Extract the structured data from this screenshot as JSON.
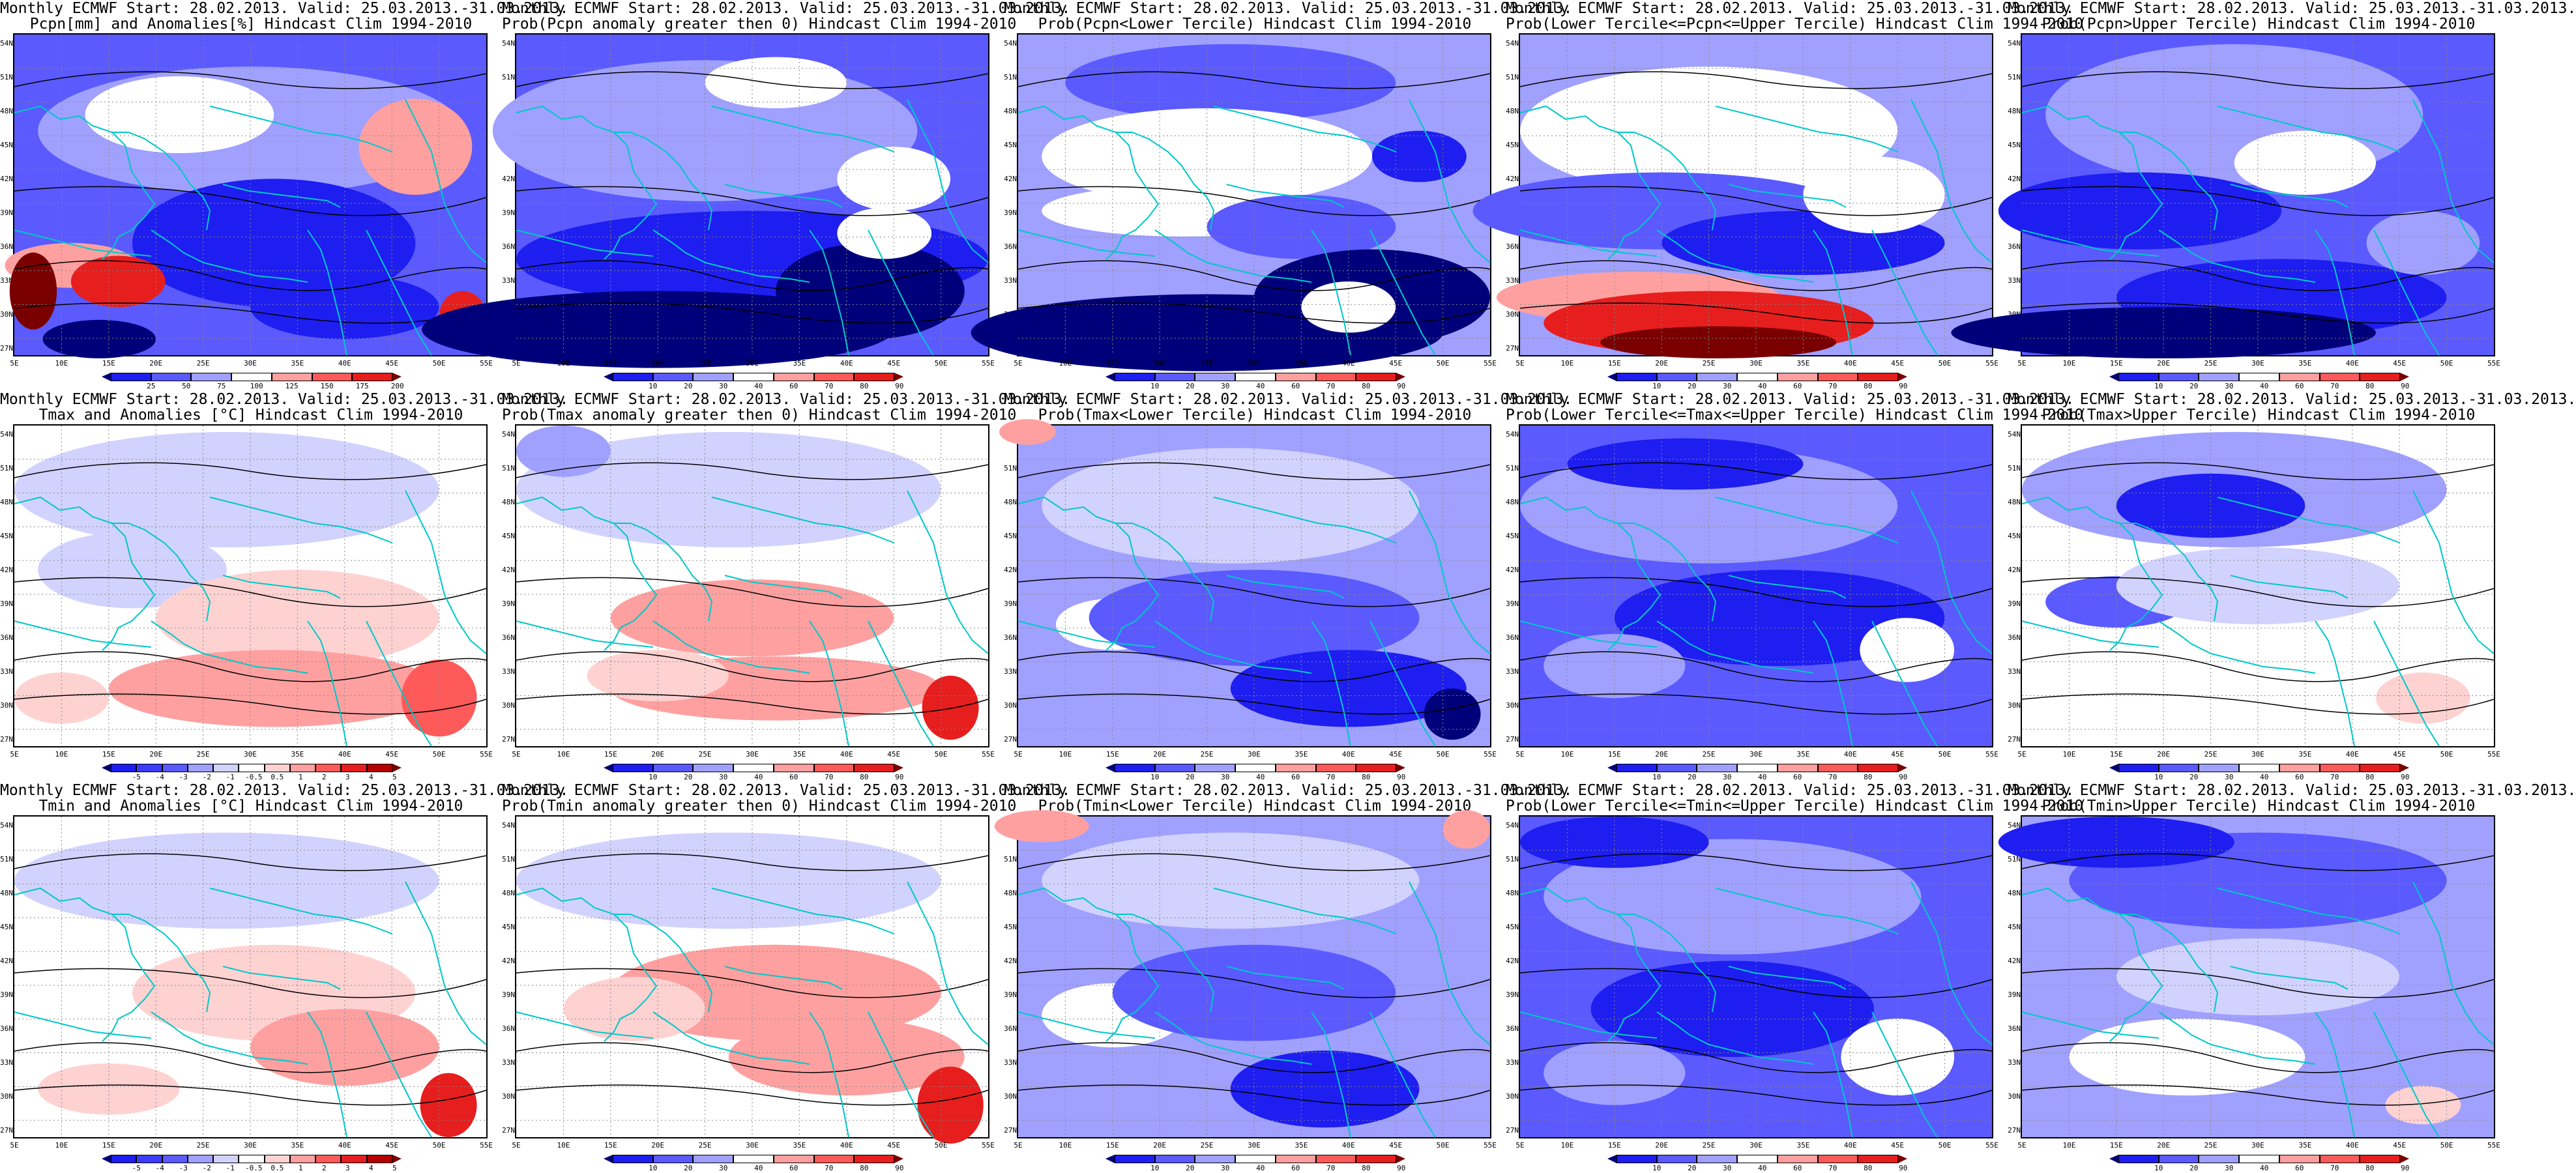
{
  "lat_labels": [
    "54N",
    "51N",
    "48N",
    "45N",
    "42N",
    "39N",
    "36N",
    "33N",
    "30N",
    "27N"
  ],
  "lon_labels": [
    "5E",
    "10E",
    "15E",
    "20E",
    "25E",
    "30E",
    "35E",
    "40E",
    "45E",
    "50E",
    "55E"
  ],
  "colors": {
    "coast": "#00c8c8",
    "contour": "#000000",
    "dark_blue": "#00007a",
    "blue": "#1e1ef0",
    "mid_blue": "#5a5aff",
    "light_blue": "#a0a0ff",
    "pale_blue": "#d2d2ff",
    "white": "#ffffff",
    "pale_red": "#ffd2d2",
    "light_red": "#ffa0a0",
    "mid_red": "#ff5a5a",
    "red": "#e61e1e",
    "dark_red": "#7a0000"
  },
  "colorbars": {
    "pcpn_anom": {
      "labels": [
        "25",
        "50",
        "75",
        "100",
        "125",
        "150",
        "175",
        "200"
      ],
      "colors": [
        "#00007a",
        "#1e1ef0",
        "#5a5aff",
        "#a0a0ff",
        "#ffffff",
        "#ffa0a0",
        "#ff5a5a",
        "#e61e1e",
        "#7a0000"
      ]
    },
    "temp_anom": {
      "labels": [
        "-5",
        "-4",
        "-3",
        "-2",
        "-1",
        "-0.5",
        "0.5",
        "1",
        "2",
        "3",
        "4",
        "5"
      ],
      "colors": [
        "#00007a",
        "#1e1ef0",
        "#3c3cff",
        "#5a5aff",
        "#a0a0ff",
        "#d2d2ff",
        "#ffffff",
        "#ffd2d2",
        "#ffa0a0",
        "#ff5a5a",
        "#e61e1e",
        "#b40000",
        "#7a0000"
      ]
    },
    "prob": {
      "labels": [
        "10",
        "20",
        "30",
        "40",
        "60",
        "70",
        "80",
        "90"
      ],
      "colors": [
        "#00007a",
        "#1e1ef0",
        "#5a5aff",
        "#a0a0ff",
        "#ffffff",
        "#ffa0a0",
        "#ff5a5a",
        "#e61e1e",
        "#7a0000"
      ]
    }
  },
  "panels": [
    {
      "title1": "Monthly ECMWF Start: 28.02.2013. Valid: 25.03.2013.-31.03.2013.",
      "title2": "Pcpn[mm] and Anomalies[%] Hindcast Clim 1994-2010",
      "cbar": "pcpn_anom",
      "base": "#5a5aff",
      "patches": [
        [
          "#a0a0ff",
          0.5,
          0.3,
          0.45,
          0.2
        ],
        [
          "#ffffff",
          0.35,
          0.25,
          0.2,
          0.12
        ],
        [
          "#ffa0a0",
          0.85,
          0.35,
          0.12,
          0.15
        ],
        [
          "#1e1ef0",
          0.55,
          0.65,
          0.3,
          0.2
        ],
        [
          "#ffa0a0",
          0.12,
          0.72,
          0.14,
          0.07
        ],
        [
          "#e61e1e",
          0.22,
          0.77,
          0.1,
          0.08
        ],
        [
          "#7a0000",
          0.04,
          0.8,
          0.05,
          0.12
        ],
        [
          "#00007a",
          0.18,
          0.95,
          0.12,
          0.06
        ],
        [
          "#1e1ef0",
          0.7,
          0.85,
          0.2,
          0.1
        ],
        [
          "#e61e1e",
          0.95,
          0.88,
          0.05,
          0.08
        ]
      ]
    },
    {
      "title1": "Monthly ECMWF Start: 28.02.2013. Valid: 25.03.2013.-31.03.2013.",
      "title2": "Prob(Pcpn anomaly greater then 0) Hindcast Clim 1994-2010",
      "cbar": "prob",
      "base": "#5a5aff",
      "patches": [
        [
          "#a0a0ff",
          0.4,
          0.3,
          0.45,
          0.22
        ],
        [
          "#ffffff",
          0.55,
          0.15,
          0.15,
          0.08
        ],
        [
          "#ffffff",
          0.8,
          0.45,
          0.12,
          0.1
        ],
        [
          "#1e1ef0",
          0.5,
          0.7,
          0.5,
          0.15
        ],
        [
          "#00007a",
          0.3,
          0.92,
          0.5,
          0.12
        ],
        [
          "#00007a",
          0.75,
          0.8,
          0.2,
          0.15
        ],
        [
          "#ffffff",
          0.78,
          0.62,
          0.1,
          0.08
        ]
      ]
    },
    {
      "title1": "Monthly ECMWF Start: 28.02.2013. Valid: 25.03.2013.-31.03.2013.",
      "title2": "Prob(Pcpn<Lower Tercile) Hindcast Clim 1994-2010",
      "cbar": "prob",
      "base": "#a0a0ff",
      "patches": [
        [
          "#5a5aff",
          0.45,
          0.15,
          0.35,
          0.12
        ],
        [
          "#ffffff",
          0.4,
          0.38,
          0.35,
          0.15
        ],
        [
          "#ffffff",
          0.35,
          0.55,
          0.3,
          0.08
        ],
        [
          "#5a5aff",
          0.6,
          0.6,
          0.2,
          0.1
        ],
        [
          "#00007a",
          0.4,
          0.93,
          0.5,
          0.12
        ],
        [
          "#00007a",
          0.75,
          0.82,
          0.25,
          0.15
        ],
        [
          "#ffffff",
          0.7,
          0.85,
          0.1,
          0.08
        ],
        [
          "#1e1ef0",
          0.85,
          0.38,
          0.1,
          0.08
        ]
      ]
    },
    {
      "title1": "Monthly ECMWF Start: 28.02.2013. Valid: 25.03.2013.-31.03.2013.",
      "title2": "Prob(Lower Tercile<=Pcpn<=Upper Tercile) Hindcast Clim 1994-2010",
      "cbar": "prob",
      "base": "#a0a0ff",
      "patches": [
        [
          "#ffffff",
          0.4,
          0.3,
          0.4,
          0.2
        ],
        [
          "#5a5aff",
          0.3,
          0.55,
          0.4,
          0.12
        ],
        [
          "#1e1ef0",
          0.6,
          0.65,
          0.3,
          0.1
        ],
        [
          "#ffa0a0",
          0.25,
          0.82,
          0.3,
          0.08
        ],
        [
          "#e61e1e",
          0.4,
          0.9,
          0.35,
          0.1
        ],
        [
          "#7a0000",
          0.42,
          0.96,
          0.25,
          0.05
        ],
        [
          "#ffffff",
          0.75,
          0.5,
          0.15,
          0.12
        ]
      ]
    },
    {
      "title1": "Monthly ECMWF Start: 28.02.2013. Valid: 25.03.2013.-31.03.2013.",
      "title2": "Prob(Pcpn>Upper Tercile) Hindcast Clim 1994-2010",
      "cbar": "prob",
      "base": "#5a5aff",
      "patches": [
        [
          "#a0a0ff",
          0.45,
          0.25,
          0.4,
          0.22
        ],
        [
          "#ffffff",
          0.6,
          0.4,
          0.15,
          0.1
        ],
        [
          "#1e1ef0",
          0.25,
          0.55,
          0.3,
          0.12
        ],
        [
          "#1e1ef0",
          0.55,
          0.82,
          0.35,
          0.12
        ],
        [
          "#00007a",
          0.3,
          0.93,
          0.45,
          0.08
        ],
        [
          "#a0a0ff",
          0.85,
          0.65,
          0.12,
          0.1
        ]
      ]
    },
    {
      "title1": "Monthly ECMWF Start: 28.02.2013. Valid: 25.03.2013.-31.03.2013.",
      "title2": "Tmax and Anomalies [°C] Hindcast Clim 1994-2010",
      "cbar": "temp_anom",
      "base": "#ffffff",
      "patches": [
        [
          "#d2d2ff",
          0.45,
          0.2,
          0.45,
          0.18
        ],
        [
          "#d2d2ff",
          0.25,
          0.45,
          0.2,
          0.12
        ],
        [
          "#ffd2d2",
          0.6,
          0.6,
          0.3,
          0.15
        ],
        [
          "#ffa0a0",
          0.55,
          0.82,
          0.35,
          0.12
        ],
        [
          "#ff5a5a",
          0.9,
          0.85,
          0.08,
          0.12
        ],
        [
          "#ffd2d2",
          0.1,
          0.85,
          0.1,
          0.08
        ]
      ]
    },
    {
      "title1": "Monthly ECMWF Start: 28.02.2013. Valid: 25.03.2013.-31.03.2013.",
      "title2": "Prob(Tmax anomaly greater then 0) Hindcast Clim 1994-2010",
      "cbar": "prob",
      "base": "#ffffff",
      "patches": [
        [
          "#d2d2ff",
          0.45,
          0.2,
          0.45,
          0.18
        ],
        [
          "#a0a0ff",
          0.1,
          0.08,
          0.1,
          0.08
        ],
        [
          "#ffa0a0",
          0.5,
          0.6,
          0.3,
          0.12
        ],
        [
          "#ffa0a0",
          0.55,
          0.82,
          0.35,
          0.1
        ],
        [
          "#e61e1e",
          0.92,
          0.88,
          0.06,
          0.1
        ],
        [
          "#ffd2d2",
          0.3,
          0.78,
          0.15,
          0.08
        ]
      ]
    },
    {
      "title1": "Monthly ECMWF Start: 28.02.2013. Valid: 25.03.2013.-31.03.2013.",
      "title2": "Prob(Tmax<Lower Tercile) Hindcast Clim 1994-2010",
      "cbar": "prob",
      "base": "#a0a0ff",
      "patches": [
        [
          "#d2d2ff",
          0.45,
          0.25,
          0.4,
          0.18
        ],
        [
          "#ffffff",
          0.2,
          0.62,
          0.12,
          0.08
        ],
        [
          "#5a5aff",
          0.5,
          0.6,
          0.35,
          0.15
        ],
        [
          "#1e1ef0",
          0.7,
          0.82,
          0.25,
          0.12
        ],
        [
          "#00007a",
          0.92,
          0.9,
          0.06,
          0.08
        ],
        [
          "#ffa0a0",
          0.02,
          0.02,
          0.06,
          0.04
        ]
      ]
    },
    {
      "title1": "Monthly ECMWF Start: 28.02.2013. Valid: 25.03.2013.-31.03.2013.",
      "title2": "Prob(Lower Tercile<=Tmax<=Upper Tercile) Hindcast Clim 1994-2010",
      "cbar": "prob",
      "base": "#5a5aff",
      "patches": [
        [
          "#a0a0ff",
          0.4,
          0.25,
          0.4,
          0.18
        ],
        [
          "#1e1ef0",
          0.55,
          0.6,
          0.35,
          0.15
        ],
        [
          "#1e1ef0",
          0.35,
          0.12,
          0.25,
          0.08
        ],
        [
          "#ffffff",
          0.82,
          0.7,
          0.1,
          0.1
        ],
        [
          "#a0a0ff",
          0.2,
          0.75,
          0.15,
          0.1
        ]
      ]
    },
    {
      "title1": "Monthly ECMWF Start: 28.02.2013. Valid: 25.03.2013.-31.03.2013.",
      "title2": "Prob(Tmax>Upper Tercile) Hindcast Clim 1994-2010",
      "cbar": "prob",
      "base": "#ffffff",
      "patches": [
        [
          "#a0a0ff",
          0.45,
          0.2,
          0.45,
          0.18
        ],
        [
          "#1e1ef0",
          0.4,
          0.25,
          0.2,
          0.1
        ],
        [
          "#5a5aff",
          0.2,
          0.55,
          0.15,
          0.08
        ],
        [
          "#d2d2ff",
          0.5,
          0.5,
          0.3,
          0.12
        ],
        [
          "#ffd2d2",
          0.85,
          0.85,
          0.1,
          0.08
        ]
      ]
    },
    {
      "title1": "Monthly ECMWF Start: 28.02.2013. Valid: 25.03.2013.-31.03.2013.",
      "title2": "Tmin and Anomalies [°C] Hindcast Clim 1994-2010",
      "cbar": "temp_anom",
      "base": "#ffffff",
      "patches": [
        [
          "#d2d2ff",
          0.45,
          0.2,
          0.45,
          0.15
        ],
        [
          "#ffd2d2",
          0.55,
          0.55,
          0.3,
          0.15
        ],
        [
          "#ffa0a0",
          0.7,
          0.72,
          0.2,
          0.12
        ],
        [
          "#e61e1e",
          0.92,
          0.9,
          0.06,
          0.1
        ],
        [
          "#ffd2d2",
          0.2,
          0.85,
          0.15,
          0.08
        ]
      ]
    },
    {
      "title1": "Monthly ECMWF Start: 28.02.2013. Valid: 25.03.2013.-31.03.2013.",
      "title2": "Prob(Tmin anomaly greater then 0) Hindcast Clim 1994-2010",
      "cbar": "prob",
      "base": "#ffffff",
      "patches": [
        [
          "#d2d2ff",
          0.45,
          0.2,
          0.45,
          0.15
        ],
        [
          "#ffa0a0",
          0.55,
          0.55,
          0.35,
          0.15
        ],
        [
          "#ffa0a0",
          0.7,
          0.75,
          0.25,
          0.12
        ],
        [
          "#e61e1e",
          0.92,
          0.9,
          0.07,
          0.12
        ],
        [
          "#ffd2d2",
          0.25,
          0.6,
          0.15,
          0.1
        ]
      ]
    },
    {
      "title1": "Monthly ECMWF Start: 28.02.2013. Valid: 25.03.2013.-31.03.2013.",
      "title2": "Prob(Tmin<Lower Tercile) Hindcast Clim 1994-2010",
      "cbar": "prob",
      "base": "#a0a0ff",
      "patches": [
        [
          "#d2d2ff",
          0.45,
          0.2,
          0.4,
          0.15
        ],
        [
          "#ffffff",
          0.2,
          0.62,
          0.15,
          0.1
        ],
        [
          "#5a5aff",
          0.5,
          0.55,
          0.3,
          0.15
        ],
        [
          "#1e1ef0",
          0.65,
          0.85,
          0.2,
          0.12
        ],
        [
          "#ffa0a0",
          0.05,
          0.03,
          0.1,
          0.05
        ],
        [
          "#ffa0a0",
          0.95,
          0.04,
          0.05,
          0.06
        ]
      ]
    },
    {
      "title1": "Monthly ECMWF Start: 28.02.2013. Valid: 25.03.2013.-31.03.2013.",
      "title2": "Prob(Lower Tercile<=Tmin<=Upper Tercile) Hindcast Clim 1994-2010",
      "cbar": "prob",
      "base": "#5a5aff",
      "patches": [
        [
          "#a0a0ff",
          0.45,
          0.25,
          0.4,
          0.18
        ],
        [
          "#1e1ef0",
          0.45,
          0.6,
          0.3,
          0.15
        ],
        [
          "#ffffff",
          0.8,
          0.75,
          0.12,
          0.12
        ],
        [
          "#a0a0ff",
          0.2,
          0.8,
          0.15,
          0.1
        ],
        [
          "#1e1ef0",
          0.2,
          0.08,
          0.2,
          0.08
        ]
      ]
    },
    {
      "title1": "Monthly ECMWF Start: 28.02.2013. Valid: 25.03.2013.-31.03.2013.",
      "title2": "Prob(Tmin>Upper Tercile) Hindcast Clim 1994-2010",
      "cbar": "prob",
      "base": "#a0a0ff",
      "patches": [
        [
          "#5a5aff",
          0.5,
          0.2,
          0.4,
          0.15
        ],
        [
          "#1e1ef0",
          0.2,
          0.08,
          0.25,
          0.08
        ],
        [
          "#d2d2ff",
          0.5,
          0.5,
          0.3,
          0.12
        ],
        [
          "#ffffff",
          0.35,
          0.75,
          0.25,
          0.12
        ],
        [
          "#ffd2d2",
          0.85,
          0.9,
          0.08,
          0.06
        ]
      ]
    }
  ]
}
